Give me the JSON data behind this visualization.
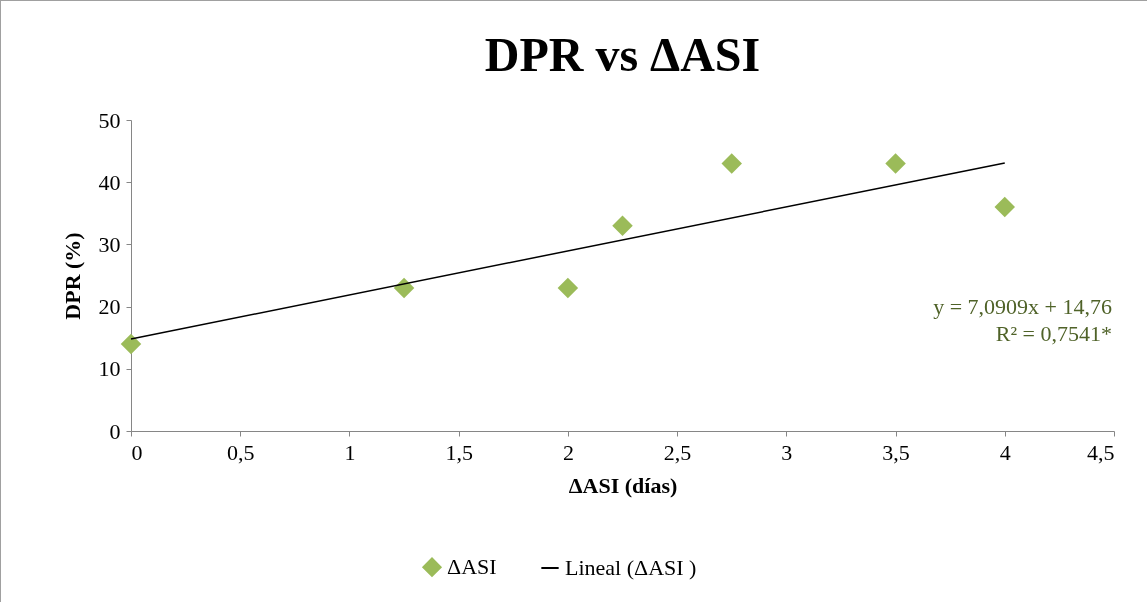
{
  "chart_data": {
    "type": "scatter",
    "title": "DPR vs ΔASI",
    "xlabel": "ΔASI (días)",
    "ylabel": "DPR (%)",
    "xlim": [
      0,
      4.5
    ],
    "xticks": [
      0,
      {
        "value": 0.5,
        "label": "0,5"
      },
      1,
      {
        "value": 1.5,
        "label": "1,5"
      },
      2,
      {
        "value": 2.5,
        "label": "2,5"
      },
      3,
      {
        "value": 3.5,
        "label": "3,5"
      },
      4,
      {
        "value": 4.5,
        "label": "4,5"
      }
    ],
    "ylim": [
      0,
      50
    ],
    "yticks": [
      0,
      10,
      20,
      30,
      40,
      50
    ],
    "grid": false,
    "legend": "bottom",
    "annotations": [
      "y = 7,0909x + 14,76",
      "R² = 0,7541*"
    ],
    "series": [
      {
        "name": "ΔASI",
        "marker": "diamond",
        "color": "#9bbb59",
        "x": [
          0,
          1.25,
          2,
          2.25,
          2.75,
          3.5,
          4
        ],
        "values": [
          14,
          23,
          23,
          33,
          43,
          43,
          36
        ]
      },
      {
        "name": "Lineal (ΔASI )",
        "type": "line",
        "marker": "none",
        "line_style": "solid",
        "color": "#000000",
        "x": [
          0,
          4
        ],
        "values": [
          14.8,
          43.1
        ]
      }
    ]
  }
}
